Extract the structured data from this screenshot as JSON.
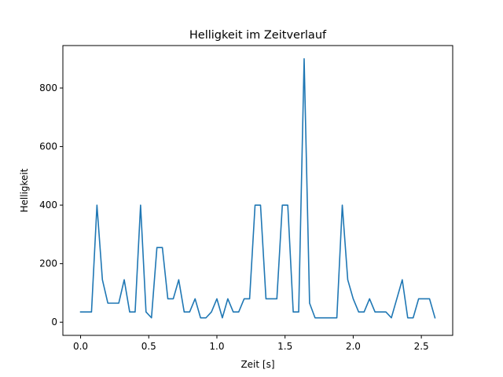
{
  "chart_data": {
    "type": "line",
    "title": "Helligkeit im Zeitverlauf",
    "xlabel": "Zeit [s]",
    "ylabel": "Helligkeit",
    "xlim": [
      -0.13,
      2.73
    ],
    "ylim": [
      -45,
      945
    ],
    "xticks": [
      0.0,
      0.5,
      1.0,
      1.5,
      2.0,
      2.5
    ],
    "xtick_labels": [
      "0.0",
      "0.5",
      "1.0",
      "1.5",
      "2.0",
      "2.5"
    ],
    "yticks": [
      0,
      200,
      400,
      600,
      800
    ],
    "ytick_labels": [
      "0",
      "200",
      "400",
      "600",
      "800"
    ],
    "grid": false,
    "color": "#1f77b4",
    "series": [
      {
        "x": [
          0.0,
          0.04,
          0.08,
          0.12,
          0.16,
          0.2,
          0.24,
          0.28,
          0.32,
          0.36,
          0.4,
          0.44,
          0.48,
          0.52,
          0.56,
          0.6,
          0.64,
          0.68,
          0.72,
          0.76,
          0.8,
          0.84,
          0.88,
          0.92,
          0.96,
          1.0,
          1.04,
          1.08,
          1.12,
          1.16,
          1.2,
          1.24,
          1.28,
          1.32,
          1.36,
          1.4,
          1.44,
          1.48,
          1.52,
          1.56,
          1.6,
          1.64,
          1.68,
          1.72,
          1.76,
          1.8,
          1.84,
          1.88,
          1.92,
          1.96,
          2.0,
          2.04,
          2.08,
          2.12,
          2.16,
          2.2,
          2.24,
          2.28,
          2.32,
          2.36,
          2.4,
          2.44,
          2.48,
          2.52,
          2.56,
          2.6
        ],
        "y": [
          35,
          35,
          35,
          400,
          145,
          65,
          65,
          65,
          145,
          35,
          35,
          400,
          35,
          15,
          255,
          255,
          80,
          80,
          145,
          35,
          35,
          80,
          15,
          15,
          35,
          80,
          15,
          80,
          35,
          35,
          80,
          80,
          400,
          400,
          80,
          80,
          80,
          400,
          400,
          35,
          35,
          900,
          65,
          15,
          15,
          15,
          15,
          15,
          400,
          145,
          80,
          35,
          35,
          80,
          35,
          35,
          35,
          15,
          80,
          145,
          15,
          15,
          80,
          80,
          80,
          15
        ]
      }
    ]
  }
}
